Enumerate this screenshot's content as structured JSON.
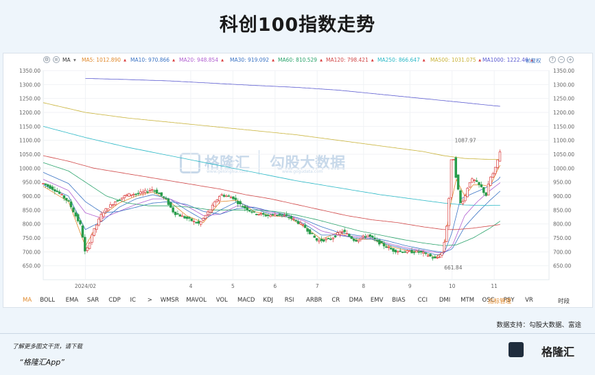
{
  "title": "科创100指数走势",
  "toolbar": {
    "ma_label": "MA",
    "items": [
      {
        "label": "MA5: 1012.890",
        "color": "#e0892c"
      },
      {
        "label": "MA10: 970.866",
        "color": "#3a73c4"
      },
      {
        "label": "MA20: 948.854",
        "color": "#b05fd0"
      },
      {
        "label": "MA30: 919.092",
        "color": "#3a73c4"
      },
      {
        "label": "MA60: 810.529",
        "color": "#2aa36b"
      },
      {
        "label": "MA120: 798.421",
        "color": "#d04747"
      },
      {
        "label": "MA250: 866.647",
        "color": "#2ab8c6"
      },
      {
        "label": "MA500: 1031.075",
        "color": "#c9b33a"
      },
      {
        "label": "MA1000: 1222.46",
        "color": "#5a5ad0"
      }
    ],
    "adjust_label": "前复权"
  },
  "watermark": {
    "brand1": "格隆汇",
    "brand1_url": "www.gelonghui.com",
    "brand2": "勾股大数据",
    "brand2_url": "www.gogudata.com"
  },
  "indicators": [
    "MA",
    "BOLL",
    "EMA",
    "SAR",
    "CDP",
    "IC",
    ">",
    "WMSR",
    "MAVOL",
    "VOL",
    "MACD",
    "KDJ",
    "RSI",
    "ARBR",
    "CR",
    "DMA",
    "EMV",
    "BIAS",
    "CCI",
    "DMI",
    "MTM",
    "OSC",
    "PSY",
    "VR"
  ],
  "indicator_manage": "指标管理",
  "indicator_time": "时段",
  "footer": {
    "source": "数据支持：勾股大数据、富途",
    "note": "了解更多图文干货，请下载",
    "app": "“格隆汇App”",
    "brand": "格隆汇"
  },
  "colors": {
    "up": "#d93a3a",
    "down": "#2a9d4c",
    "ma5": "#e0892c",
    "ma10": "#3a73c4",
    "ma20": "#b05fd0",
    "ma30": "#3a73c4",
    "ma60": "#2aa36b",
    "ma120": "#d04747",
    "ma250": "#2ab8c6",
    "ma500": "#c9b33a",
    "ma1000": "#5a5ad0"
  },
  "chart_data": {
    "type": "line",
    "ylim": [
      600,
      1350
    ],
    "y_ticks": [
      650,
      700,
      750,
      800,
      850,
      900,
      950,
      1000,
      1050,
      1100,
      1150,
      1200,
      1250,
      1300,
      1350
    ],
    "y_tick_labels": [
      "650.00",
      "700.00",
      "750.00",
      "800.00",
      "850.00",
      "900.00",
      "950.00",
      "1000.00",
      "1050.00",
      "1100.00",
      "1150.00",
      "1200.00",
      "1250.00",
      "1300.00",
      "1350.00"
    ],
    "x_range": [
      0,
      12
    ],
    "x_ticks": [
      {
        "x": 1.0,
        "label": "2024/02"
      },
      {
        "x": 3.5,
        "label": "4"
      },
      {
        "x": 4.5,
        "label": "5"
      },
      {
        "x": 5.5,
        "label": "6"
      },
      {
        "x": 6.5,
        "label": "7"
      },
      {
        "x": 7.6,
        "label": "8"
      },
      {
        "x": 8.7,
        "label": "9"
      },
      {
        "x": 9.7,
        "label": "10"
      },
      {
        "x": 10.7,
        "label": "11"
      }
    ],
    "annotations": [
      {
        "text": "1087.97",
        "x": 9.6,
        "y": 1088
      },
      {
        "text": "661.84",
        "x": 9.35,
        "y": 662
      }
    ],
    "price": {
      "name": "科创100指数",
      "x": [
        0,
        0.3,
        0.6,
        0.9,
        1.0,
        1.15,
        1.4,
        1.7,
        2.0,
        2.3,
        2.6,
        2.9,
        3.1,
        3.4,
        3.7,
        4.0,
        4.2,
        4.5,
        4.7,
        5.0,
        5.3,
        5.6,
        5.9,
        6.2,
        6.5,
        6.8,
        7.1,
        7.4,
        7.7,
        8.0,
        8.3,
        8.6,
        8.9,
        9.1,
        9.3,
        9.45,
        9.55,
        9.62,
        9.7,
        9.8,
        9.9,
        10.0,
        10.1,
        10.2,
        10.3,
        10.4,
        10.5,
        10.6,
        10.7,
        10.8,
        10.85
      ],
      "y": [
        945,
        920,
        880,
        790,
        690,
        760,
        840,
        880,
        905,
        910,
        925,
        890,
        840,
        820,
        800,
        860,
        905,
        895,
        865,
        840,
        830,
        835,
        820,
        790,
        740,
        745,
        775,
        740,
        760,
        730,
        705,
        700,
        700,
        690,
        675,
        690,
        760,
        880,
        1075,
        960,
        875,
        895,
        950,
        960,
        945,
        930,
        900,
        965,
        985,
        1040,
        1070
      ]
    },
    "series": [
      {
        "name": "MA5",
        "x": [
          0,
          0.6,
          1.0,
          1.4,
          1.8,
          2.2,
          2.6,
          3.0,
          3.4,
          3.8,
          4.2,
          4.6,
          5.0,
          5.4,
          5.8,
          6.2,
          6.6,
          7.0,
          7.4,
          7.8,
          8.2,
          8.6,
          9.0,
          9.3,
          9.5,
          9.65,
          9.8,
          10.0,
          10.2,
          10.4,
          10.6,
          10.8,
          10.85
        ],
        "y": [
          935,
          880,
          720,
          830,
          875,
          900,
          915,
          880,
          830,
          805,
          880,
          885,
          845,
          830,
          825,
          790,
          745,
          770,
          745,
          745,
          720,
          705,
          700,
          680,
          700,
          860,
          960,
          900,
          940,
          940,
          935,
          1000,
          1013
        ]
      },
      {
        "name": "MA10",
        "x": [
          0,
          0.6,
          1.0,
          1.4,
          1.8,
          2.2,
          2.6,
          3.0,
          3.4,
          3.8,
          4.2,
          4.6,
          5.0,
          5.4,
          5.8,
          6.2,
          6.6,
          7.0,
          7.4,
          7.8,
          8.2,
          8.6,
          9.0,
          9.3,
          9.5,
          9.7,
          9.9,
          10.2,
          10.5,
          10.8,
          10.85
        ],
        "y": [
          940,
          900,
          780,
          810,
          860,
          890,
          905,
          890,
          850,
          815,
          850,
          880,
          855,
          835,
          825,
          800,
          760,
          760,
          750,
          745,
          725,
          710,
          702,
          690,
          690,
          770,
          890,
          910,
          930,
          960,
          971
        ]
      },
      {
        "name": "MA20",
        "x": [
          0,
          0.6,
          1.0,
          1.4,
          1.8,
          2.2,
          2.6,
          3.0,
          3.4,
          3.8,
          4.2,
          4.6,
          5.0,
          5.4,
          5.8,
          6.2,
          6.6,
          7.0,
          7.4,
          7.8,
          8.2,
          8.6,
          9.0,
          9.3,
          9.5,
          9.7,
          10.0,
          10.3,
          10.6,
          10.85
        ],
        "y": [
          960,
          920,
          840,
          820,
          845,
          870,
          890,
          890,
          865,
          830,
          835,
          865,
          860,
          840,
          830,
          810,
          775,
          760,
          755,
          748,
          730,
          715,
          705,
          698,
          695,
          720,
          830,
          880,
          920,
          949
        ]
      },
      {
        "name": "MA30",
        "x": [
          0,
          0.6,
          1.0,
          1.4,
          1.8,
          2.2,
          2.6,
          3.0,
          3.4,
          3.8,
          4.2,
          4.6,
          5.0,
          5.4,
          5.8,
          6.2,
          6.6,
          7.0,
          7.4,
          7.8,
          8.2,
          8.6,
          9.0,
          9.3,
          9.5,
          9.7,
          10.0,
          10.3,
          10.6,
          10.85
        ],
        "y": [
          985,
          945,
          880,
          840,
          845,
          860,
          875,
          880,
          870,
          845,
          835,
          855,
          860,
          845,
          832,
          815,
          790,
          770,
          760,
          752,
          738,
          722,
          710,
          702,
          698,
          710,
          790,
          840,
          885,
          919
        ]
      },
      {
        "name": "MA60",
        "x": [
          0,
          0.6,
          1.0,
          1.5,
          2.0,
          2.5,
          3.0,
          3.5,
          4.0,
          4.5,
          5.0,
          5.5,
          6.0,
          6.5,
          7.0,
          7.5,
          8.0,
          8.5,
          9.0,
          9.5,
          9.8,
          10.2,
          10.6,
          10.85
        ],
        "y": [
          1020,
          990,
          950,
          900,
          875,
          865,
          865,
          860,
          850,
          850,
          850,
          845,
          832,
          815,
          795,
          775,
          760,
          745,
          732,
          722,
          725,
          750,
          785,
          811
        ]
      },
      {
        "name": "MA120",
        "x": [
          0,
          0.6,
          1.2,
          1.8,
          2.4,
          3.0,
          3.6,
          4.2,
          4.8,
          5.4,
          6.0,
          6.6,
          7.2,
          7.8,
          8.4,
          9.0,
          9.5,
          9.8,
          10.2,
          10.6,
          10.85
        ],
        "y": [
          1045,
          1025,
          1000,
          985,
          970,
          955,
          940,
          925,
          905,
          890,
          870,
          850,
          830,
          815,
          805,
          790,
          780,
          780,
          785,
          793,
          798
        ]
      },
      {
        "name": "MA250",
        "x": [
          0,
          1,
          2,
          3,
          4,
          5,
          6,
          7,
          8,
          9,
          9.5,
          10,
          10.5,
          10.85
        ],
        "y": [
          1150,
          1110,
          1075,
          1045,
          1015,
          985,
          955,
          930,
          905,
          885,
          875,
          868,
          866,
          867
        ]
      },
      {
        "name": "MA500",
        "x": [
          0,
          1,
          2,
          3,
          4,
          5,
          6,
          7,
          8,
          9,
          9.5,
          10,
          10.5,
          10.85
        ],
        "y": [
          1235,
          1200,
          1180,
          1165,
          1150,
          1135,
          1120,
          1100,
          1080,
          1060,
          1045,
          1035,
          1032,
          1031
        ]
      },
      {
        "name": "MA1000",
        "x": [
          1.0,
          2,
          3,
          4,
          5,
          6,
          7,
          8,
          9,
          10,
          10.5,
          10.85
        ],
        "y": [
          1322,
          1318,
          1313,
          1305,
          1297,
          1290,
          1280,
          1265,
          1250,
          1235,
          1227,
          1222
        ]
      }
    ]
  }
}
